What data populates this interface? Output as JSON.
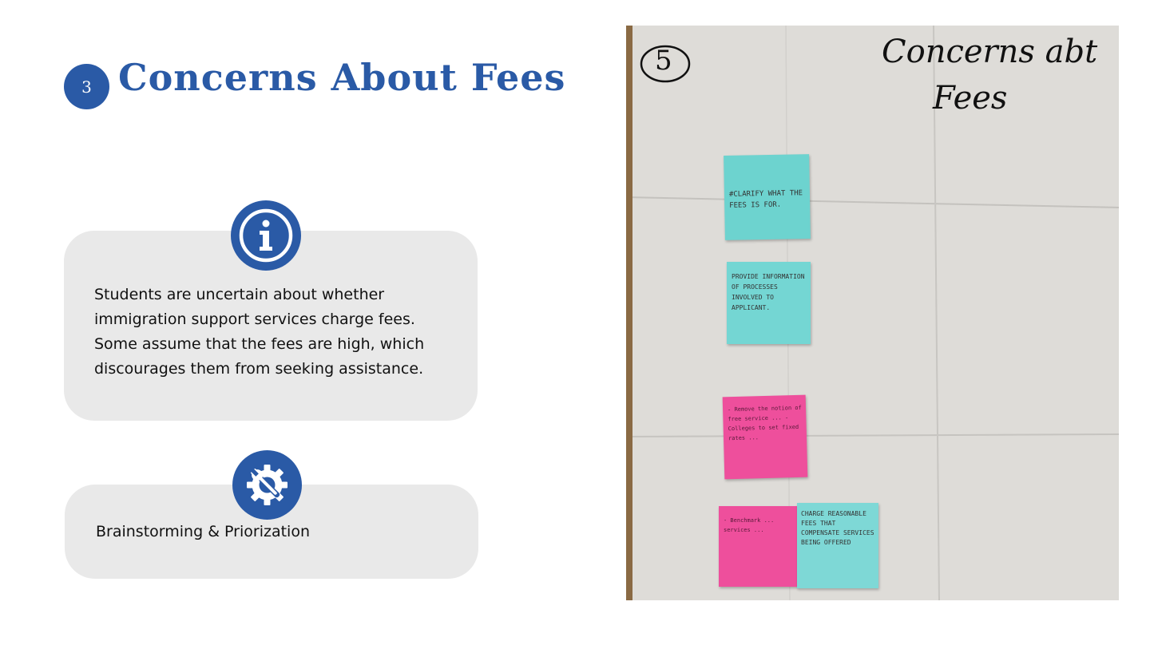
{
  "section_number": "3",
  "title": "Concerns About Fees",
  "card1": {
    "icon": "info-icon",
    "text": "Students are uncertain about whether immigration support services charge fees. Some assume that the fees are high, which discourages them from seeking assistance."
  },
  "card2": {
    "icon": "tools-gear-icon",
    "text": "Brainstorming & Priorization"
  },
  "photo": {
    "number": "5",
    "heading_line1": "Concerns abt",
    "heading_line2": "Fees",
    "notes": [
      {
        "color": "#6dd3cf",
        "text": "#CLARIFY WHAT THE FEES IS FOR."
      },
      {
        "color": "#74d6d3",
        "text": "PROVIDE INFORMATION OF PROCESSES INVOLVED TO APPLICANT."
      },
      {
        "color": "#ee4f9c",
        "text": "- Remove the notion of free service ... - Colleges to set fixed rates ..."
      },
      {
        "color": "#ee4f9c",
        "text": "- Benchmark ... services ..."
      },
      {
        "color": "#7ed8d6",
        "text": "CHARGE REASONABLE FEES THAT COMPENSATE SERVICES BEING OFFERED"
      }
    ]
  }
}
